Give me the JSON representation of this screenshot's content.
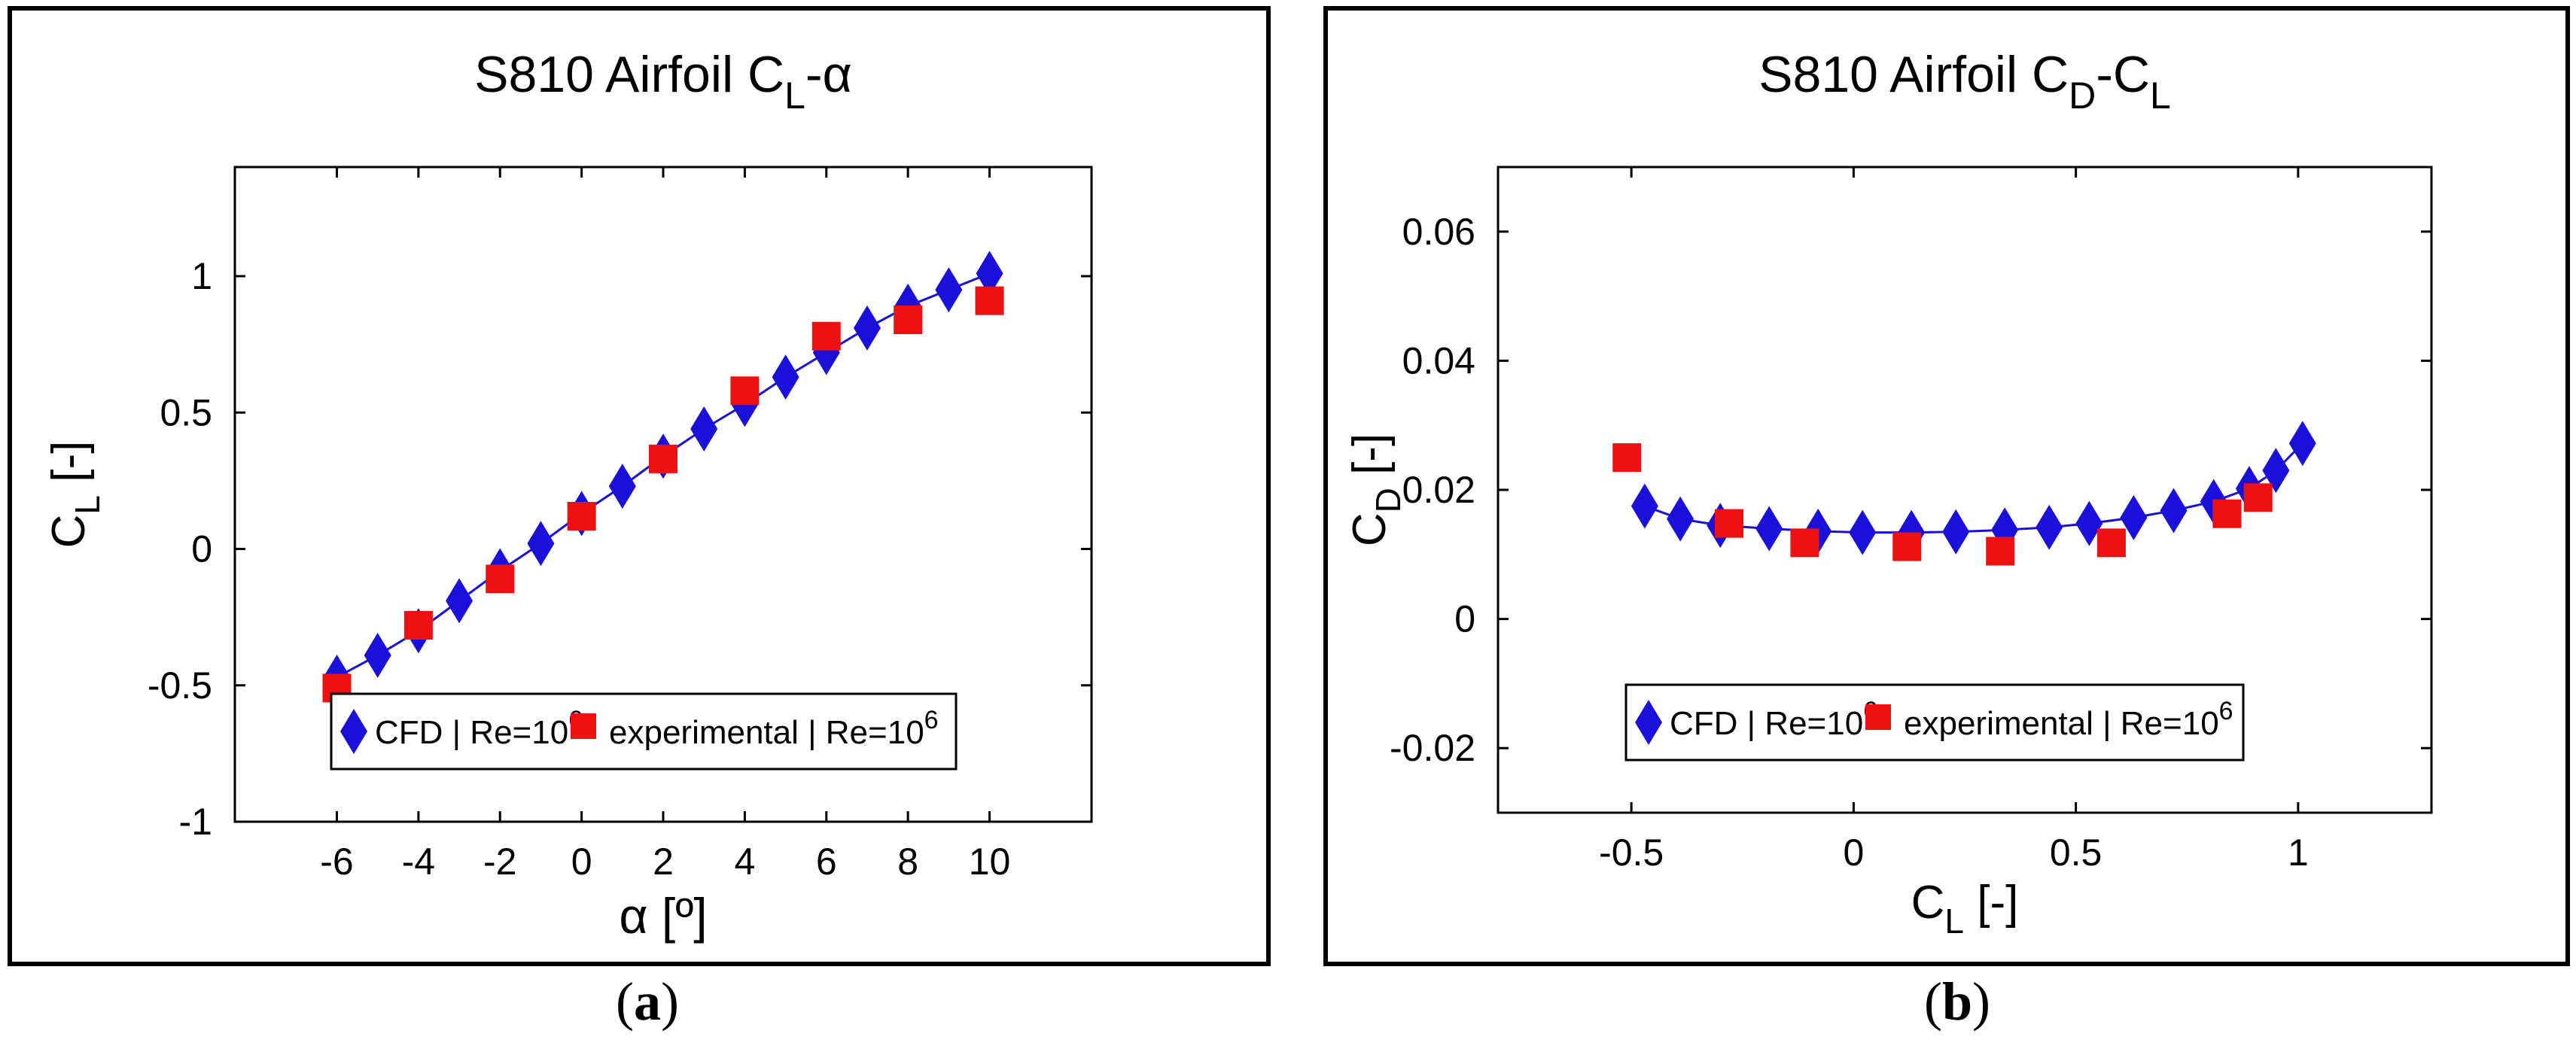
{
  "colors": {
    "cfd": "#1a10dc",
    "cfd_line": "#1a10dc",
    "experimental": "#ee1111",
    "axis": "#000000"
  },
  "labels": {
    "a": {
      "open": "(",
      "letter": "a",
      "close": ")"
    },
    "b": {
      "open": "(",
      "letter": "b",
      "close": ")"
    }
  },
  "chart_data": [
    {
      "type": "line",
      "title_main": "S810 Airfoil C",
      "title_sub": "L",
      "title_tail": "-α",
      "xlabel": "α [º]",
      "ylabel_main": "C",
      "ylabel_sub": "L",
      "ylabel_tail": " [-]",
      "xlim": [
        -8.5,
        12.5
      ],
      "ylim": [
        -1,
        1.4
      ],
      "xticks": [
        -6,
        -4,
        -2,
        0,
        2,
        4,
        6,
        8,
        10
      ],
      "yticks": [
        -1,
        -0.5,
        0,
        0.5,
        1
      ],
      "xtick_labels": [
        "-6",
        "-4",
        "-2",
        "0",
        "2",
        "4",
        "6",
        "8",
        "10"
      ],
      "ytick_labels": [
        "-1",
        "-0.5",
        "0",
        "0.5",
        "1"
      ],
      "legend": {
        "entries": [
          {
            "name": "CFD | Re=10",
            "sup": "6"
          },
          {
            "name": "experimental | Re=10",
            "sup": "6"
          }
        ],
        "placement": "lower-right"
      },
      "series": [
        {
          "name": "CFD | Re=10^6",
          "marker": "diamond",
          "line": true,
          "x": [
            -6,
            -5,
            -4,
            -3,
            -2,
            -1,
            0,
            1,
            2,
            3,
            4,
            5,
            6,
            7,
            8,
            9,
            10
          ],
          "y": [
            -0.47,
            -0.39,
            -0.3,
            -0.19,
            -0.08,
            0.02,
            0.13,
            0.23,
            0.34,
            0.44,
            0.53,
            0.63,
            0.72,
            0.81,
            0.89,
            0.95,
            1.01
          ]
        },
        {
          "name": "experimental | Re=10^6",
          "marker": "square",
          "line": false,
          "x": [
            -6,
            -4,
            -2,
            0,
            2,
            4,
            6,
            8,
            10
          ],
          "y": [
            -0.51,
            -0.28,
            -0.11,
            0.12,
            0.33,
            0.58,
            0.78,
            0.84,
            0.91
          ]
        }
      ]
    },
    {
      "type": "line",
      "title_main": "S810 Airfoil C",
      "title_sub": "D",
      "title_dash": "-C",
      "title_sub2": "L",
      "xlabel_main": "C",
      "xlabel_sub": "L",
      "xlabel_tail": " [-]",
      "ylabel_main": "C",
      "ylabel_sub": "D",
      "ylabel_tail": " [-]",
      "xlim": [
        -0.8,
        1.3
      ],
      "ylim": [
        -0.03,
        0.07
      ],
      "xticks": [
        -0.5,
        0,
        0.5,
        1
      ],
      "yticks": [
        -0.02,
        0,
        0.02,
        0.04,
        0.06
      ],
      "xtick_labels": [
        "-0.5",
        "0",
        "0.5",
        "1"
      ],
      "ytick_labels": [
        "-0.02",
        "0",
        "0.02",
        "0.04",
        "0.06"
      ],
      "legend": {
        "entries": [
          {
            "name": "CFD | Re=10",
            "sup": "6"
          },
          {
            "name": "experimental | Re=10",
            "sup": "6"
          }
        ],
        "placement": "lower-center"
      },
      "series": [
        {
          "name": "CFD | Re=10^6",
          "marker": "diamond",
          "line": true,
          "x": [
            -0.47,
            -0.39,
            -0.3,
            -0.19,
            -0.08,
            0.02,
            0.13,
            0.23,
            0.34,
            0.44,
            0.53,
            0.63,
            0.72,
            0.81,
            0.89,
            0.95,
            1.01
          ],
          "y": [
            0.0175,
            0.0155,
            0.0145,
            0.014,
            0.0136,
            0.0134,
            0.0134,
            0.0135,
            0.0138,
            0.0142,
            0.0148,
            0.0157,
            0.0168,
            0.0182,
            0.0202,
            0.023,
            0.0272
          ]
        },
        {
          "name": "experimental | Re=10^6",
          "marker": "square",
          "line": false,
          "x": [
            -0.51,
            -0.28,
            -0.11,
            0.12,
            0.33,
            0.58,
            0.84,
            0.91
          ],
          "y": [
            0.025,
            0.0148,
            0.0118,
            0.0112,
            0.0105,
            0.0118,
            0.0163,
            0.0188
          ]
        }
      ]
    }
  ]
}
